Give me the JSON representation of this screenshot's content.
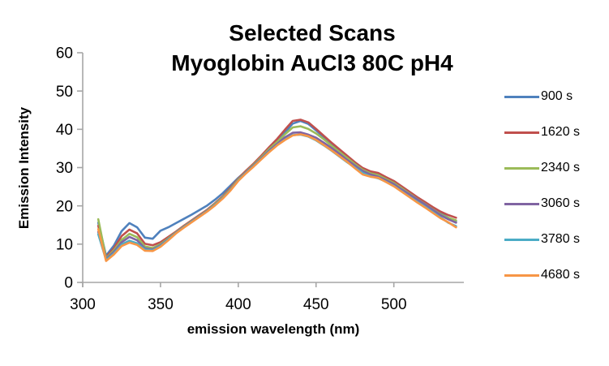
{
  "chart_data": {
    "type": "line",
    "title": "Selected Scans Myoglobin AuCl3 80C pH4",
    "title_lines": [
      "Selected Scans",
      "Myoglobin AuCl3 80C pH4"
    ],
    "xlabel": "emission wavelength (nm)",
    "ylabel": "Emission Intensity",
    "xlim": [
      300,
      545
    ],
    "ylim": [
      0,
      60
    ],
    "x_ticks": [
      300,
      350,
      400,
      450,
      500
    ],
    "y_ticks": [
      0,
      10,
      20,
      30,
      40,
      50,
      60
    ],
    "grid": false,
    "legend_position": "right",
    "axis_color": "#a6a6a6",
    "x": [
      310,
      315,
      320,
      325,
      330,
      335,
      340,
      345,
      350,
      355,
      360,
      365,
      370,
      375,
      380,
      385,
      390,
      395,
      400,
      405,
      410,
      415,
      420,
      425,
      430,
      435,
      440,
      445,
      450,
      455,
      460,
      465,
      470,
      475,
      480,
      485,
      490,
      495,
      500,
      505,
      510,
      515,
      520,
      525,
      530,
      535,
      540
    ],
    "series": [
      {
        "name": "900 s",
        "color": "#4F81BD",
        "values": [
          15.6,
          7.0,
          9.6,
          13.4,
          15.5,
          14.4,
          11.7,
          11.4,
          13.5,
          14.4,
          15.5,
          16.6,
          17.7,
          18.9,
          20.1,
          21.6,
          23.3,
          25.3,
          27.3,
          29.1,
          30.9,
          32.9,
          35.1,
          37.0,
          39.2,
          41.5,
          42.2,
          41.4,
          39.7,
          37.9,
          36.1,
          34.4,
          32.7,
          31.1,
          29.7,
          28.7,
          28.2,
          27.1,
          26.1,
          24.7,
          23.3,
          21.9,
          20.6,
          19.3,
          18.1,
          16.9,
          15.9
        ]
      },
      {
        "name": "1620 s",
        "color": "#C0504D",
        "values": [
          14.8,
          6.6,
          8.9,
          12.1,
          13.8,
          12.8,
          10.1,
          9.7,
          10.5,
          11.9,
          13.3,
          14.8,
          16.2,
          17.6,
          19.0,
          20.7,
          22.5,
          24.7,
          27.1,
          29.2,
          31.1,
          33.2,
          35.4,
          37.5,
          39.9,
          42.2,
          42.5,
          41.8,
          40.1,
          38.3,
          36.5,
          34.8,
          33.1,
          31.4,
          29.9,
          29.0,
          28.6,
          27.5,
          26.5,
          25.1,
          23.7,
          22.3,
          21.0,
          19.7,
          18.5,
          17.6,
          16.9
        ]
      },
      {
        "name": "2340 s",
        "color": "#9BBB59",
        "values": [
          16.5,
          6.3,
          8.4,
          11.1,
          12.7,
          11.8,
          9.4,
          9.0,
          10.0,
          11.5,
          13.1,
          14.6,
          16.0,
          17.4,
          18.8,
          20.5,
          22.3,
          24.4,
          26.9,
          28.9,
          30.8,
          32.8,
          34.9,
          36.7,
          38.7,
          40.5,
          40.8,
          40.1,
          38.9,
          37.4,
          35.7,
          34.1,
          32.5,
          30.9,
          29.4,
          28.5,
          28.0,
          27.0,
          26.0,
          24.6,
          23.2,
          21.8,
          20.5,
          19.1,
          17.8,
          16.9,
          16.2
        ]
      },
      {
        "name": "3060 s",
        "color": "#8064A2",
        "values": [
          13.2,
          6.1,
          8.0,
          10.5,
          11.9,
          11.0,
          8.9,
          8.6,
          9.7,
          11.3,
          13.0,
          14.5,
          15.9,
          17.3,
          18.7,
          20.3,
          22.1,
          24.2,
          26.7,
          28.8,
          30.6,
          32.5,
          34.5,
          36.2,
          37.9,
          39.1,
          39.2,
          38.6,
          37.8,
          36.5,
          35.1,
          33.6,
          32.0,
          30.5,
          29.1,
          28.2,
          27.6,
          26.7,
          25.7,
          24.3,
          23.0,
          21.7,
          20.4,
          19.0,
          17.6,
          16.5,
          15.6
        ]
      },
      {
        "name": "3780 s",
        "color": "#4BACC6",
        "values": [
          12.6,
          5.9,
          7.6,
          9.9,
          10.9,
          10.2,
          8.6,
          8.4,
          9.5,
          11.2,
          12.9,
          14.4,
          15.8,
          17.2,
          18.6,
          20.2,
          22.0,
          24.1,
          26.6,
          28.6,
          30.4,
          32.3,
          34.2,
          35.9,
          37.3,
          38.5,
          38.6,
          38.1,
          37.1,
          35.8,
          34.4,
          32.9,
          31.4,
          30.0,
          28.6,
          27.7,
          27.2,
          26.3,
          25.2,
          23.8,
          22.4,
          21.1,
          19.8,
          18.4,
          17.0,
          15.6,
          14.7
        ]
      },
      {
        "name": "4680 s",
        "color": "#F79646",
        "values": [
          13.9,
          5.6,
          7.3,
          9.5,
          10.4,
          9.8,
          8.3,
          8.2,
          9.3,
          11.0,
          12.8,
          14.3,
          15.7,
          17.1,
          18.5,
          20.1,
          21.9,
          24.0,
          26.5,
          28.5,
          30.3,
          32.2,
          34.1,
          35.8,
          37.2,
          38.4,
          38.7,
          38.2,
          37.2,
          35.9,
          34.5,
          33.0,
          31.5,
          29.8,
          28.2,
          27.6,
          27.3,
          26.2,
          25.1,
          23.7,
          22.3,
          20.9,
          19.6,
          18.2,
          16.8,
          15.7,
          14.4
        ]
      }
    ]
  }
}
